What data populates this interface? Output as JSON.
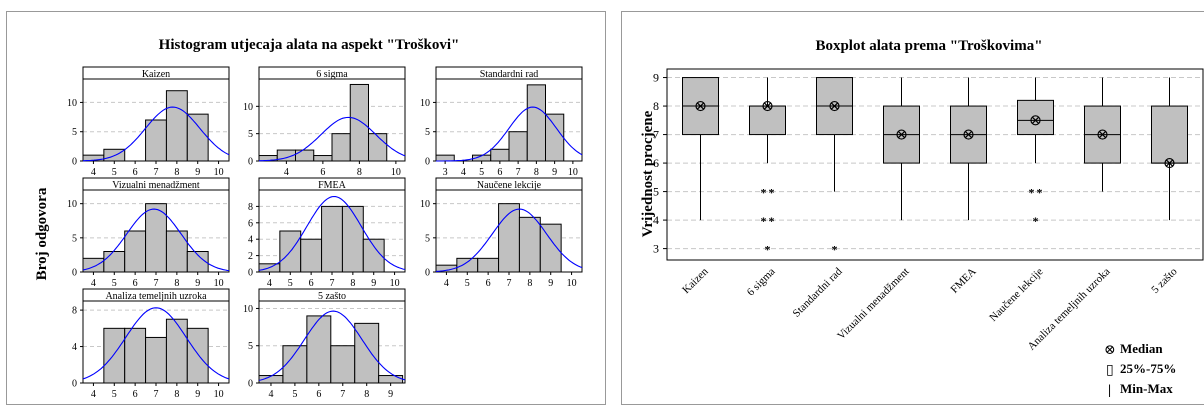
{
  "histogram_panel": {
    "title": "Histogram utjecaja alata na aspekt \"Troškovi\"",
    "ylabel": "Broj odgovora"
  },
  "boxplot_panel": {
    "title": "Boxplot alata prema \"Troškovima\"",
    "ylabel": "Vrijednost procjene",
    "legend": [
      {
        "symbol": "⊗",
        "label": "Median"
      },
      {
        "symbol": "▯",
        "label": "25%-75%"
      },
      {
        "symbol": "|",
        "label": "Min-Max"
      }
    ]
  },
  "colors": {
    "bar": "#c0c0c0",
    "curve": "#0000ff",
    "grid": "#c8c8c8",
    "outlier": "#000000"
  },
  "chart_data": [
    {
      "type": "bar",
      "subtype": "histogram-panel-grid",
      "title": "Histogram utjecaja alata na aspekt \"Troškovi\"",
      "ylabel": "Broj odgovora",
      "panels": [
        {
          "name": "Kaizen",
          "bins": [
            4,
            5,
            6,
            7,
            8,
            9
          ],
          "counts": [
            1,
            2,
            0,
            7,
            12,
            8
          ],
          "xticks": [
            4,
            5,
            6,
            7,
            8,
            9,
            10
          ],
          "xlim": [
            3.5,
            10.5
          ],
          "yticks": [
            0,
            5,
            10
          ],
          "ylim": [
            0,
            14
          ],
          "fit": {
            "mean": 7.8,
            "sd": 1.3
          }
        },
        {
          "name": "6 sigma",
          "bins": [
            3,
            4,
            5,
            6,
            7,
            8,
            9
          ],
          "counts": [
            1,
            2,
            2,
            1,
            5,
            14,
            5
          ],
          "xticks": [
            4,
            6,
            8,
            10
          ],
          "xlim": [
            2.5,
            10.5
          ],
          "yticks": [
            0,
            5,
            10
          ],
          "ylim": [
            0,
            15
          ],
          "fit": {
            "mean": 7.4,
            "sd": 1.5
          }
        },
        {
          "name": "Standardni rad",
          "bins": [
            3,
            4,
            5,
            6,
            7,
            8,
            9
          ],
          "counts": [
            1,
            0,
            1,
            2,
            5,
            13,
            8
          ],
          "xticks": [
            3,
            4,
            5,
            6,
            7,
            8,
            9,
            10
          ],
          "xlim": [
            2.5,
            10.5
          ],
          "yticks": [
            0,
            5,
            10
          ],
          "ylim": [
            0,
            14
          ],
          "fit": {
            "mean": 7.8,
            "sd": 1.3
          }
        },
        {
          "name": "Vizualni menadžment",
          "bins": [
            4,
            5,
            6,
            7,
            8,
            9
          ],
          "counts": [
            2,
            3,
            6,
            10,
            6,
            3
          ],
          "xticks": [
            4,
            5,
            6,
            7,
            8,
            9,
            10
          ],
          "xlim": [
            3.5,
            10.5
          ],
          "yticks": [
            0,
            5,
            10
          ],
          "ylim": [
            0,
            12
          ],
          "fit": {
            "mean": 6.9,
            "sd": 1.3
          }
        },
        {
          "name": "FMEA",
          "bins": [
            4,
            5,
            6,
            7,
            8,
            9
          ],
          "counts": [
            1,
            5,
            4,
            8,
            8,
            4
          ],
          "xticks": [
            4,
            5,
            6,
            7,
            8,
            9,
            10
          ],
          "xlim": [
            3.5,
            10.5
          ],
          "yticks": [
            0,
            2,
            4,
            6,
            8
          ],
          "ylim": [
            0,
            10
          ],
          "fit": {
            "mean": 7.1,
            "sd": 1.3
          }
        },
        {
          "name": "Naučene lekcije",
          "bins": [
            4,
            5,
            6,
            7,
            8,
            9
          ],
          "counts": [
            1,
            2,
            2,
            10,
            8,
            7
          ],
          "xticks": [
            4,
            5,
            6,
            7,
            8,
            9,
            10
          ],
          "xlim": [
            3.5,
            10.5
          ],
          "yticks": [
            0,
            5,
            10
          ],
          "ylim": [
            0,
            12
          ],
          "fit": {
            "mean": 7.5,
            "sd": 1.3
          }
        },
        {
          "name": "Analiza temeljnih uzroka",
          "bins": [
            5,
            6,
            7,
            8,
            9
          ],
          "counts": [
            6,
            6,
            5,
            7,
            6
          ],
          "xticks": [
            4,
            5,
            6,
            7,
            8,
            9,
            10
          ],
          "xlim": [
            3.5,
            10.5
          ],
          "yticks": [
            0,
            4,
            8
          ],
          "ylim": [
            0,
            9
          ],
          "fit": {
            "mean": 7.0,
            "sd": 1.45
          }
        },
        {
          "name": "5 zašto",
          "bins": [
            4,
            5,
            6,
            7,
            8,
            9
          ],
          "counts": [
            1,
            5,
            9,
            5,
            8,
            1
          ],
          "xticks": [
            4,
            5,
            6,
            7,
            8,
            9
          ],
          "xlim": [
            3.5,
            9.6
          ],
          "yticks": [
            0,
            5,
            10
          ],
          "ylim": [
            0,
            11
          ],
          "fit": {
            "mean": 6.6,
            "sd": 1.2
          }
        }
      ]
    },
    {
      "type": "box",
      "title": "Boxplot alata prema \"Troškovima\"",
      "ylabel": "Vrijednost procjene",
      "ylim": [
        2.6,
        9.3
      ],
      "yticks": [
        3,
        4,
        5,
        6,
        7,
        8,
        9
      ],
      "categories": [
        "Kaizen",
        "6 sigma",
        "Standardni rad",
        "Vizualni menadžment",
        "FMEA",
        "Naučene lekcije",
        "Analiza temeljnih uzroka",
        "5 zašto"
      ],
      "boxes": [
        {
          "q1": 7,
          "median": 8,
          "q3": 9,
          "min": 4,
          "max": 9,
          "outliers": []
        },
        {
          "q1": 7,
          "median": 8,
          "q3": 8,
          "min": 6,
          "max": 9,
          "outliers": [
            [
              5,
              2
            ],
            [
              4,
              2
            ],
            [
              3,
              1
            ]
          ]
        },
        {
          "q1": 7,
          "median": 8,
          "q3": 9,
          "min": 5,
          "max": 9,
          "outliers": [
            [
              3,
              1
            ]
          ]
        },
        {
          "q1": 6,
          "median": 7,
          "q3": 8,
          "min": 4,
          "max": 9,
          "outliers": []
        },
        {
          "q1": 6,
          "median": 7,
          "q3": 8,
          "min": 4,
          "max": 9,
          "outliers": []
        },
        {
          "q1": 7,
          "median": 7.5,
          "q3": 8.2,
          "min": 6,
          "max": 9,
          "outliers": [
            [
              5,
              2
            ],
            [
              4,
              1
            ]
          ]
        },
        {
          "q1": 6,
          "median": 7,
          "q3": 8,
          "min": 5,
          "max": 9,
          "outliers": []
        },
        {
          "q1": 6,
          "median": 6,
          "q3": 8,
          "min": 4,
          "max": 9,
          "outliers": []
        }
      ]
    }
  ]
}
